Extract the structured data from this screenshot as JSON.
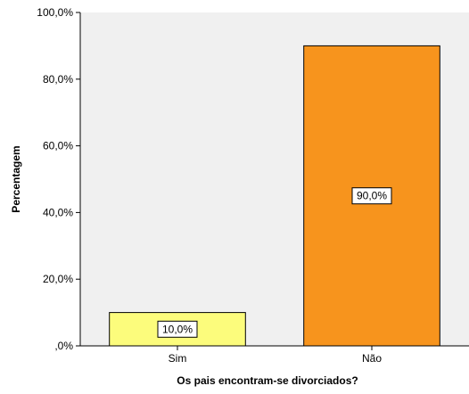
{
  "chart_data": {
    "type": "bar",
    "categories": [
      "Sim",
      "Não"
    ],
    "values": [
      10.0,
      90.0
    ],
    "value_labels": [
      "10,0%",
      "90,0%"
    ],
    "xlabel": "Os pais encontram-se divorciados?",
    "ylabel": "Percentagem",
    "ylim": [
      0,
      100
    ],
    "yticks": [
      0,
      20,
      40,
      60,
      80,
      100
    ],
    "ytick_labels": [
      ",0%",
      "20,0%",
      "40,0%",
      "60,0%",
      "80,0%",
      "100,0%"
    ],
    "grid": false,
    "legend": "none",
    "colors": {
      "plot_background": "#F0F0F0",
      "bars": [
        "#FCFC7C",
        "#F7941D"
      ],
      "bar_outline": "#000000",
      "label_box": "#FFFFFF"
    }
  }
}
